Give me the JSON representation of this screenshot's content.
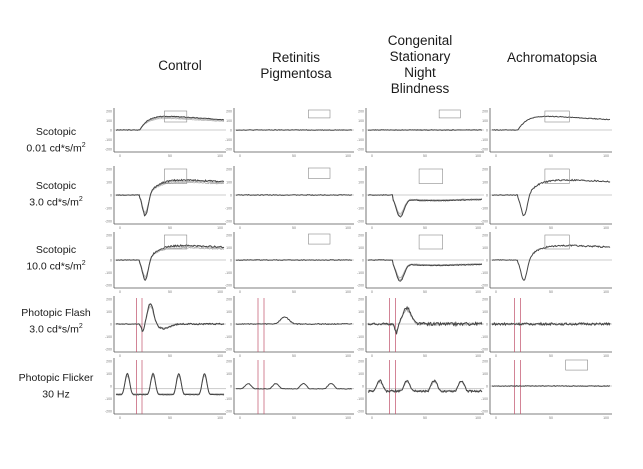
{
  "columns": [
    {
      "id": "control",
      "title": "Control"
    },
    {
      "id": "rp",
      "title": "Retinitis\nPigmentosa"
    },
    {
      "id": "csnb",
      "title": "Congenital\nStationary\nNight\nBlindness"
    },
    {
      "id": "achro",
      "title": "Achromatopsia"
    }
  ],
  "rows": [
    {
      "id": "scotopic-001",
      "line1": "Scotopic",
      "line2": "0.01 cd*s/m",
      "sup": "2"
    },
    {
      "id": "scotopic-30",
      "line1": "Scotopic",
      "line2": "3.0 cd*s/m",
      "sup": "2"
    },
    {
      "id": "scotopic-100",
      "line1": "Scotopic",
      "line2": "10.0 cd*s/m",
      "sup": "2"
    },
    {
      "id": "photopic-flash",
      "line1": "Photopic Flash",
      "line2": "3.0 cd*s/m",
      "sup": "2"
    },
    {
      "id": "photopic-flicker",
      "line1": "Photopic Flicker",
      "line2": "30 Hz",
      "sup": ""
    }
  ],
  "chart_data": {
    "type": "line",
    "layout": "grid",
    "x_ticks": [
      "0",
      "50",
      "100"
    ],
    "y_ticks": [
      "200",
      "100",
      "0",
      "-100",
      "-200"
    ],
    "colors": {
      "trace": "#444444",
      "overlay": "#aaaaaa",
      "baseline": "#c0506a",
      "marker": "#8a8a8a"
    },
    "panel_waveforms": {
      "control": [
        "b-wave",
        "a-b-wave",
        "a-b-wave",
        "photopic-large",
        "flicker-large"
      ],
      "rp": [
        "flat",
        "flat",
        "flat",
        "photopic-small",
        "flicker-small"
      ],
      "csnb": [
        "flat",
        "negative",
        "negative",
        "photopic-noisy",
        "flicker-noisy"
      ],
      "achro": [
        "b-wave",
        "a-b-wave",
        "a-b-wave",
        "flat-noisy",
        "flat"
      ]
    }
  }
}
